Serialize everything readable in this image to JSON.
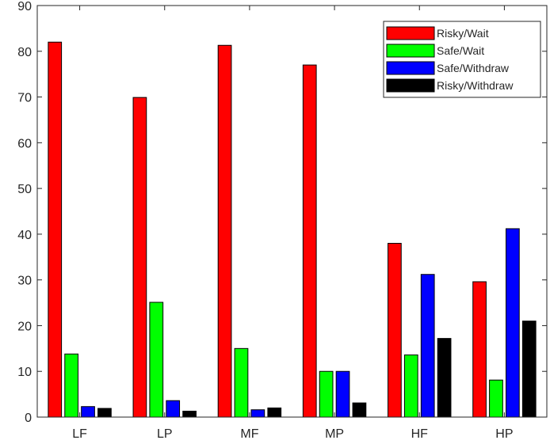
{
  "chart_data": {
    "type": "bar",
    "title": "",
    "xlabel": "",
    "ylabel": "",
    "ylim": [
      0,
      90
    ],
    "yticks": [
      0,
      10,
      20,
      30,
      40,
      50,
      60,
      70,
      80,
      90
    ],
    "grid": false,
    "legend_position": "top-right",
    "categories": [
      "LF",
      "LP",
      "MF",
      "MP",
      "HF",
      "HP"
    ],
    "series": [
      {
        "name": "Risky/Wait",
        "color": "#ff0000",
        "values": [
          82.0,
          69.9,
          81.3,
          77.0,
          38.0,
          29.6
        ]
      },
      {
        "name": "Safe/Wait",
        "color": "#00ff00",
        "values": [
          13.8,
          25.1,
          15.0,
          10.0,
          13.6,
          8.1
        ]
      },
      {
        "name": "Safe/Withdraw",
        "color": "#0000ff",
        "values": [
          2.3,
          3.6,
          1.6,
          10.0,
          31.2,
          41.2
        ]
      },
      {
        "name": "Risky/Withdraw",
        "color": "#000000",
        "values": [
          1.9,
          1.3,
          2.0,
          3.1,
          17.2,
          21.0
        ]
      }
    ]
  }
}
